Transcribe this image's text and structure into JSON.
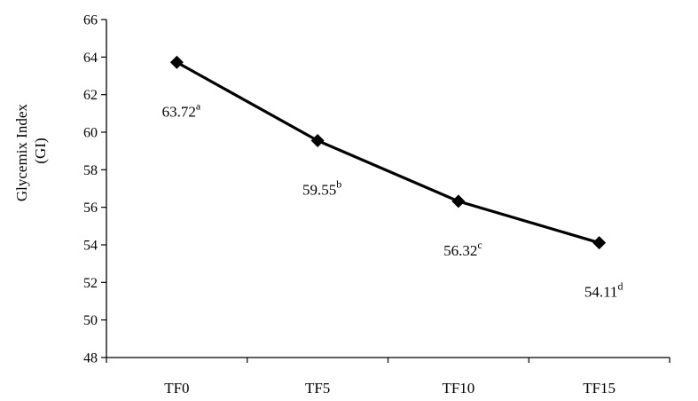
{
  "chart_data": {
    "type": "line",
    "title": "",
    "xlabel": "",
    "ylabel": "Glycemix Index",
    "ylabel_line2": "(GI)",
    "categories": [
      "TF0",
      "TF5",
      "TF10",
      "TF15"
    ],
    "series": [
      {
        "values": [
          63.72,
          59.55,
          56.32,
          54.11
        ],
        "labels": [
          "63.72",
          "59.55",
          "56.32",
          "54.11"
        ],
        "superscripts": [
          "a",
          "b",
          "c",
          "d"
        ],
        "color": "#000000",
        "marker": "diamond"
      }
    ],
    "ylim": [
      48,
      66
    ],
    "yticks": [
      "48",
      "50",
      "52",
      "54",
      "56",
      "58",
      "60",
      "62",
      "64",
      "66"
    ],
    "grid": false,
    "legend": "none"
  }
}
